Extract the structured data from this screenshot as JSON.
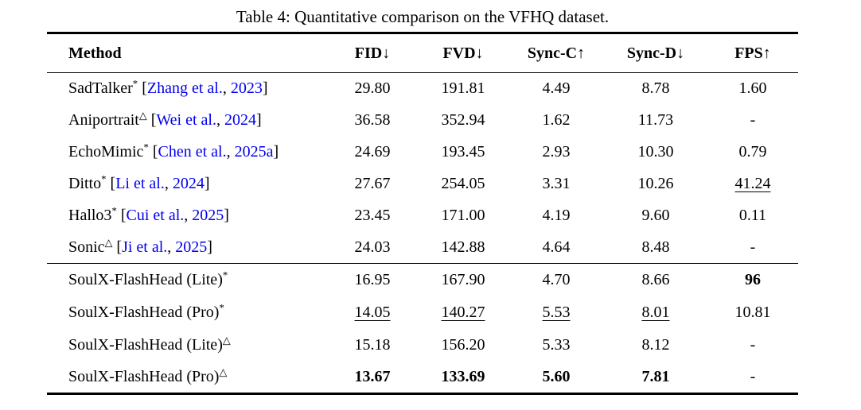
{
  "title": "Table 4: Quantitative comparison on the VFHQ dataset.",
  "colors": {
    "background": "#FFFFFF",
    "text": "#000000",
    "citation_link": "#0000EE",
    "rule": "#000000"
  },
  "columns": [
    {
      "label": "Method",
      "arrow": ""
    },
    {
      "label": "FID",
      "arrow": "↓"
    },
    {
      "label": "FVD",
      "arrow": "↓"
    },
    {
      "label": "Sync-C",
      "arrow": "↑"
    },
    {
      "label": "Sync-D",
      "arrow": "↓"
    },
    {
      "label": "FPS",
      "arrow": "↑"
    }
  ],
  "groups": [
    {
      "name": "baselines",
      "rows": [
        {
          "method": {
            "name": "SadTalker",
            "sup": "*"
          },
          "cite": {
            "open": "[",
            "authors": "Zhang et al.",
            "sep": ", ",
            "year": "2023",
            "close": "]"
          },
          "cells": [
            {
              "text": "29.80",
              "style": "normal"
            },
            {
              "text": "191.81",
              "style": "normal"
            },
            {
              "text": "4.49",
              "style": "normal"
            },
            {
              "text": "8.78",
              "style": "normal"
            },
            {
              "text": "1.60",
              "style": "normal"
            }
          ]
        },
        {
          "method": {
            "name": "Aniportrait",
            "sup": "△"
          },
          "cite": {
            "open": "[",
            "authors": "Wei et al.",
            "sep": ", ",
            "year": "2024",
            "close": "]"
          },
          "cells": [
            {
              "text": "36.58",
              "style": "normal"
            },
            {
              "text": "352.94",
              "style": "normal"
            },
            {
              "text": "1.62",
              "style": "normal"
            },
            {
              "text": "11.73",
              "style": "normal"
            },
            {
              "text": "-",
              "style": "normal"
            }
          ]
        },
        {
          "method": {
            "name": "EchoMimic",
            "sup": "*"
          },
          "cite": {
            "open": "[",
            "authors": "Chen et al.",
            "sep": ", ",
            "year": "2025a",
            "close": "]"
          },
          "cells": [
            {
              "text": "24.69",
              "style": "normal"
            },
            {
              "text": "193.45",
              "style": "normal"
            },
            {
              "text": "2.93",
              "style": "normal"
            },
            {
              "text": "10.30",
              "style": "normal"
            },
            {
              "text": "0.79",
              "style": "normal"
            }
          ]
        },
        {
          "method": {
            "name": "Ditto",
            "sup": "*"
          },
          "cite": {
            "open": "[",
            "authors": "Li et al.",
            "sep": ", ",
            "year": "2024",
            "close": "]"
          },
          "cells": [
            {
              "text": "27.67",
              "style": "normal"
            },
            {
              "text": "254.05",
              "style": "normal"
            },
            {
              "text": "3.31",
              "style": "normal"
            },
            {
              "text": "10.26",
              "style": "normal"
            },
            {
              "text": "41.24",
              "style": "underline"
            }
          ]
        },
        {
          "method": {
            "name": "Hallo3",
            "sup": "*"
          },
          "cite": {
            "open": "[",
            "authors": "Cui et al.",
            "sep": ", ",
            "year": "2025",
            "close": "]"
          },
          "cells": [
            {
              "text": "23.45",
              "style": "normal"
            },
            {
              "text": "171.00",
              "style": "normal"
            },
            {
              "text": "4.19",
              "style": "normal"
            },
            {
              "text": "9.60",
              "style": "normal"
            },
            {
              "text": "0.11",
              "style": "normal"
            }
          ]
        },
        {
          "method": {
            "name": "Sonic",
            "sup": "△"
          },
          "cite": {
            "open": "[",
            "authors": "Ji et al.",
            "sep": ", ",
            "year": "2025",
            "close": "]"
          },
          "cells": [
            {
              "text": "24.03",
              "style": "normal"
            },
            {
              "text": "142.88",
              "style": "normal"
            },
            {
              "text": "4.64",
              "style": "normal"
            },
            {
              "text": "8.48",
              "style": "normal"
            },
            {
              "text": "-",
              "style": "normal"
            }
          ]
        }
      ]
    },
    {
      "name": "ours",
      "rows": [
        {
          "method": {
            "name": "SoulX-FlashHead (Lite)",
            "sup": "*"
          },
          "cells": [
            {
              "text": "16.95",
              "style": "normal"
            },
            {
              "text": "167.90",
              "style": "normal"
            },
            {
              "text": "4.70",
              "style": "normal"
            },
            {
              "text": "8.66",
              "style": "normal"
            },
            {
              "text": "96",
              "style": "bold"
            }
          ]
        },
        {
          "method": {
            "name": "SoulX-FlashHead (Pro)",
            "sup": "*"
          },
          "cells": [
            {
              "text": "14.05",
              "style": "underline"
            },
            {
              "text": "140.27",
              "style": "underline"
            },
            {
              "text": "5.53",
              "style": "underline"
            },
            {
              "text": "8.01",
              "style": "underline"
            },
            {
              "text": "10.81",
              "style": "normal"
            }
          ]
        },
        {
          "method": {
            "name": "SoulX-FlashHead (Lite)",
            "sup": "△"
          },
          "cells": [
            {
              "text": "15.18",
              "style": "normal"
            },
            {
              "text": "156.20",
              "style": "normal"
            },
            {
              "text": "5.33",
              "style": "normal"
            },
            {
              "text": "8.12",
              "style": "normal"
            },
            {
              "text": "-",
              "style": "normal"
            }
          ]
        },
        {
          "method": {
            "name": "SoulX-FlashHead (Pro)",
            "sup": "△"
          },
          "cells": [
            {
              "text": "13.67",
              "style": "bold"
            },
            {
              "text": "133.69",
              "style": "bold"
            },
            {
              "text": "5.60",
              "style": "bold"
            },
            {
              "text": "7.81",
              "style": "bold"
            },
            {
              "text": "-",
              "style": "normal"
            }
          ]
        }
      ]
    }
  ]
}
